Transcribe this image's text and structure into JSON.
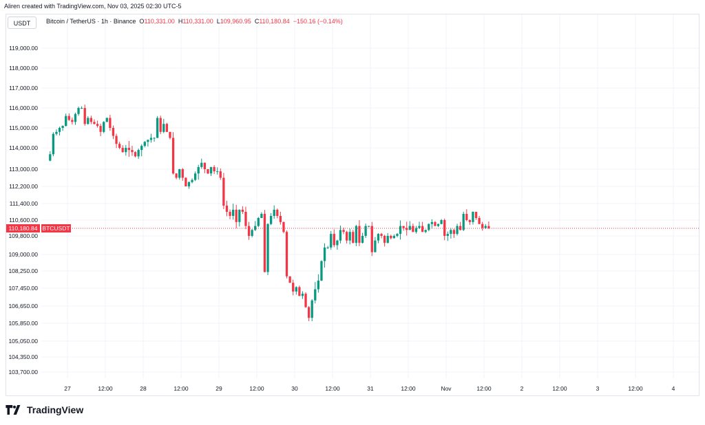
{
  "header": {
    "credit": "Aliren created with TradingView.com, Nov 03, 2025 02:30 UTC-5",
    "currency_button": "USDT"
  },
  "legend": {
    "symbol": "Bitcoin / TetherUS · 1h · Binance",
    "o_key": "O",
    "o_val": "110,331.00",
    "h_key": "H",
    "h_val": "110,331.00",
    "l_key": "L",
    "l_val": "109,960.95",
    "c_key": "C",
    "c_val": "110,180.84",
    "change": "−150.16 (−0.14%)"
  },
  "footer": {
    "brand": "TradingView"
  },
  "colors": {
    "up": "#089981",
    "down": "#f23645",
    "grid": "#f0f3fa",
    "text": "#131722"
  },
  "chart_data": {
    "type": "candlestick",
    "y_axis_position": "left",
    "grid": true,
    "y_ticks": [
      {
        "label": "119,000.00",
        "value": 119000
      },
      {
        "label": "118,000.00",
        "value": 118000
      },
      {
        "label": "117,000.00",
        "value": 117000
      },
      {
        "label": "116,000.00",
        "value": 116000
      },
      {
        "label": "115,000.00",
        "value": 115000
      },
      {
        "label": "114,000.00",
        "value": 114000
      },
      {
        "label": "113,000.00",
        "value": 113000
      },
      {
        "label": "112,200.00",
        "value": 112200
      },
      {
        "label": "111,400.00",
        "value": 111400
      },
      {
        "label": "110,600.00",
        "value": 110600
      },
      {
        "label": "109,800.00",
        "value": 109800
      },
      {
        "label": "109,000.00",
        "value": 109000
      },
      {
        "label": "108,250.00",
        "value": 108250
      },
      {
        "label": "107,450.00",
        "value": 107450
      },
      {
        "label": "106,650.00",
        "value": 106650
      },
      {
        "label": "105,850.00",
        "value": 105850
      },
      {
        "label": "105,050.00",
        "value": 105050
      },
      {
        "label": "104,350.00",
        "value": 104350
      },
      {
        "label": "103,700.00",
        "value": 103700
      }
    ],
    "x_ticks": [
      {
        "label": "27",
        "hour": 0
      },
      {
        "label": "12:00",
        "hour": 12
      },
      {
        "label": "28",
        "hour": 24
      },
      {
        "label": "12:00",
        "hour": 36
      },
      {
        "label": "29",
        "hour": 48
      },
      {
        "label": "12:00",
        "hour": 60
      },
      {
        "label": "30",
        "hour": 72
      },
      {
        "label": "12:00",
        "hour": 84
      },
      {
        "label": "31",
        "hour": 96
      },
      {
        "label": "12:00",
        "hour": 108
      },
      {
        "label": "Nov",
        "hour": 120
      },
      {
        "label": "12:00",
        "hour": 132
      },
      {
        "label": "2",
        "hour": 144
      },
      {
        "label": "12:00",
        "hour": 156
      },
      {
        "label": "3",
        "hour": 168
      },
      {
        "label": "12:00",
        "hour": 180
      },
      {
        "label": "4",
        "hour": 192
      }
    ],
    "price_line": {
      "value": 110180.84,
      "label": "110,180.84",
      "symbol_label": "BTCUSDT"
    },
    "candles_summary": {
      "open": 113400,
      "high_max": 116400,
      "low_min": 106100,
      "last_close": 110180.84
    },
    "close_path": [
      [
        -7,
        113400
      ],
      [
        -6,
        113700
      ],
      [
        -5,
        114700
      ],
      [
        -4,
        114800
      ],
      [
        -3,
        115000
      ],
      [
        -2,
        115100
      ],
      [
        -1,
        115600
      ],
      [
        0,
        115400
      ],
      [
        1,
        115300
      ],
      [
        2,
        115700
      ],
      [
        3,
        116000
      ],
      [
        4,
        116000
      ],
      [
        5,
        115200
      ],
      [
        6,
        115500
      ],
      [
        7,
        115300
      ],
      [
        8,
        115200
      ],
      [
        9,
        115100
      ],
      [
        10,
        114800
      ],
      [
        11,
        115300
      ],
      [
        12,
        115500
      ],
      [
        13,
        115000
      ],
      [
        14,
        114600
      ],
      [
        15,
        114200
      ],
      [
        16,
        114000
      ],
      [
        17,
        113800
      ],
      [
        18,
        114000
      ],
      [
        19,
        113900
      ],
      [
        20,
        113800
      ],
      [
        21,
        113600
      ],
      [
        22,
        113900
      ],
      [
        23,
        114100
      ],
      [
        24,
        114300
      ],
      [
        25,
        114400
      ],
      [
        26,
        114500
      ],
      [
        27,
        114500
      ],
      [
        28,
        115500
      ],
      [
        29,
        114800
      ],
      [
        30,
        115200
      ],
      [
        31,
        114800
      ],
      [
        32,
        114500
      ],
      [
        33,
        112800
      ],
      [
        34,
        112600
      ],
      [
        35,
        113000
      ],
      [
        36,
        112600
      ],
      [
        37,
        112200
      ],
      [
        38,
        112400
      ],
      [
        39,
        112500
      ],
      [
        40,
        112800
      ],
      [
        41,
        113100
      ],
      [
        42,
        113300
      ],
      [
        43,
        113000
      ],
      [
        44,
        112800
      ],
      [
        45,
        113100
      ],
      [
        46,
        112900
      ],
      [
        47,
        112900
      ],
      [
        48,
        112600
      ],
      [
        49,
        111300
      ],
      [
        50,
        111000
      ],
      [
        51,
        110800
      ],
      [
        52,
        111100
      ],
      [
        53,
        110500
      ],
      [
        54,
        111100
      ],
      [
        55,
        111000
      ],
      [
        56,
        110300
      ],
      [
        57,
        109800
      ],
      [
        58,
        110100
      ],
      [
        59,
        110300
      ],
      [
        60,
        110700
      ],
      [
        61,
        110900
      ],
      [
        62,
        108200
      ],
      [
        63,
        110400
      ],
      [
        64,
        110800
      ],
      [
        65,
        111100
      ],
      [
        66,
        110800
      ],
      [
        67,
        110500
      ],
      [
        68,
        110000
      ],
      [
        69,
        108000
      ],
      [
        70,
        107700
      ],
      [
        71,
        107300
      ],
      [
        72,
        107500
      ],
      [
        73,
        107100
      ],
      [
        74,
        107200
      ],
      [
        75,
        106600
      ],
      [
        76,
        106100
      ],
      [
        77,
        106900
      ],
      [
        78,
        107400
      ],
      [
        79,
        107800
      ],
      [
        80,
        108700
      ],
      [
        81,
        109300
      ],
      [
        82,
        109300
      ],
      [
        83,
        109900
      ],
      [
        84,
        109400
      ],
      [
        85,
        109600
      ],
      [
        86,
        110100
      ],
      [
        87,
        110000
      ],
      [
        88,
        109600
      ],
      [
        89,
        110000
      ],
      [
        90,
        109500
      ],
      [
        91,
        110300
      ],
      [
        92,
        109500
      ],
      [
        93,
        109800
      ],
      [
        94,
        110300
      ],
      [
        95,
        110300
      ],
      [
        96,
        109100
      ],
      [
        97,
        109600
      ],
      [
        98,
        109900
      ],
      [
        99,
        109800
      ],
      [
        100,
        109500
      ],
      [
        101,
        109800
      ],
      [
        102,
        109700
      ],
      [
        103,
        109800
      ],
      [
        104,
        109900
      ],
      [
        105,
        110300
      ],
      [
        106,
        110200
      ],
      [
        107,
        110100
      ],
      [
        108,
        110300
      ],
      [
        109,
        110000
      ],
      [
        110,
        110200
      ],
      [
        111,
        110300
      ],
      [
        112,
        110000
      ],
      [
        113,
        110100
      ],
      [
        114,
        110400
      ],
      [
        115,
        110500
      ],
      [
        116,
        110300
      ],
      [
        117,
        110400
      ],
      [
        118,
        110600
      ],
      [
        119,
        109800
      ],
      [
        120,
        109900
      ],
      [
        121,
        110100
      ],
      [
        122,
        109900
      ],
      [
        123,
        110300
      ],
      [
        124,
        110100
      ],
      [
        125,
        110900
      ],
      [
        126,
        110600
      ],
      [
        127,
        110500
      ],
      [
        128,
        111000
      ],
      [
        129,
        110700
      ],
      [
        130,
        110400
      ],
      [
        131,
        110200
      ],
      [
        132,
        110300
      ],
      [
        133,
        110180.84
      ]
    ]
  }
}
